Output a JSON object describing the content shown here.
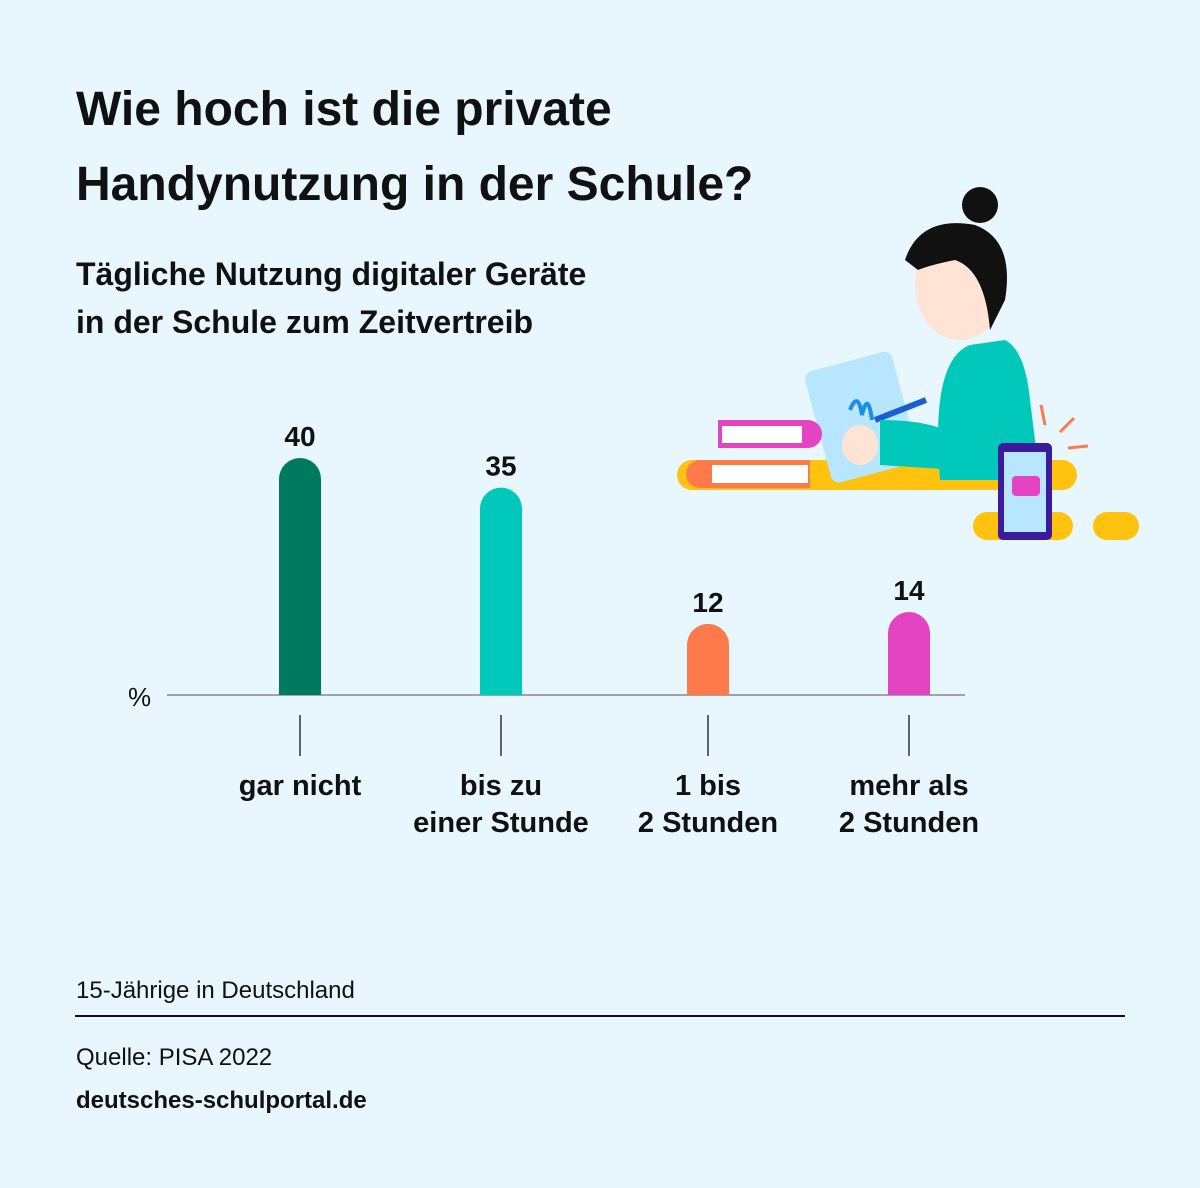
{
  "chart_data": {
    "type": "bar",
    "title": "Wie hoch ist die private\nHandynutzung in der Schule?",
    "subtitle": "Tägliche Nutzung digitaler Geräte\nin der Schule zum Zeitvertreib",
    "y_label": "%",
    "categories": [
      "gar nicht",
      "bis zu\neiner Stunde",
      "1 bis\n2 Stunden",
      "mehr als\n2 Stunden"
    ],
    "values": [
      40,
      35,
      12,
      14
    ],
    "colors": [
      "#007a5e",
      "#00c9bb",
      "#ff7a4a",
      "#e443c2"
    ],
    "note": "15-Jährige in Deutschland",
    "source": "Quelle: PISA 2022",
    "website": "deutsches-schulportal.de"
  }
}
